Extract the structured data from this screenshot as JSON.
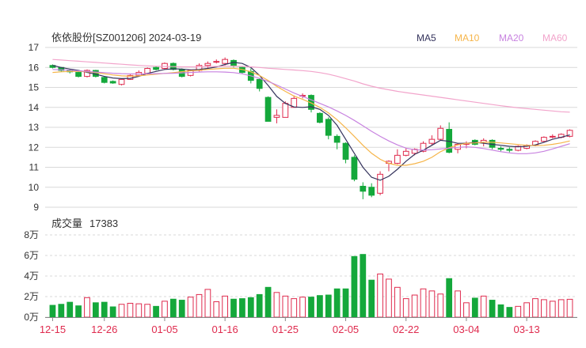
{
  "header": {
    "title": "依依股份[SZ001206] 2024-03-19"
  },
  "legend": [
    {
      "name": "MA5",
      "color": "#34335c"
    },
    {
      "name": "MA10",
      "color": "#f6b54a"
    },
    {
      "name": "MA20",
      "color": "#c883e0"
    },
    {
      "name": "MA60",
      "color": "#f2a4cb"
    }
  ],
  "volume_panel": {
    "label": "成交量",
    "value": "17383"
  },
  "colors": {
    "up": "#df2b4e",
    "down": "#14a83b",
    "grid": "#d9d9d9",
    "axis_text": "#333333",
    "date_text": "#df2b4e"
  },
  "chart_data": [
    {
      "type": "candlestick",
      "title": "依依股份[SZ001206] 2024-03-19",
      "ylim": [
        9,
        17
      ],
      "y_ticks": [
        "17",
        "16",
        "15",
        "14",
        "13",
        "12",
        "11",
        "10",
        "9"
      ],
      "x_tick_labels": [
        "12-15",
        "12-26",
        "01-05",
        "01-16",
        "01-25",
        "02-05",
        "02-22",
        "03-04",
        "03-13"
      ],
      "x_tick_index": [
        0,
        6,
        13,
        20,
        27,
        34,
        41,
        48,
        55
      ],
      "ohlc": [
        [
          16.1,
          16.15,
          15.95,
          16.0
        ],
        [
          16.0,
          16.02,
          15.78,
          15.85
        ],
        [
          15.85,
          15.9,
          15.7,
          15.78
        ],
        [
          15.75,
          15.8,
          15.5,
          15.55
        ],
        [
          15.55,
          15.9,
          15.5,
          15.85
        ],
        [
          15.85,
          15.88,
          15.5,
          15.55
        ],
        [
          15.5,
          15.55,
          15.2,
          15.25
        ],
        [
          15.3,
          15.35,
          15.18,
          15.22
        ],
        [
          15.15,
          15.45,
          15.1,
          15.4
        ],
        [
          15.4,
          15.65,
          15.38,
          15.6
        ],
        [
          15.6,
          15.85,
          15.55,
          15.75
        ],
        [
          15.7,
          16.0,
          15.65,
          15.95
        ],
        [
          16.0,
          16.05,
          15.85,
          15.9
        ],
        [
          15.95,
          16.25,
          15.9,
          16.2
        ],
        [
          16.2,
          16.25,
          15.85,
          15.9
        ],
        [
          15.9,
          15.95,
          15.5,
          15.55
        ],
        [
          15.6,
          15.9,
          15.55,
          15.85
        ],
        [
          15.85,
          16.2,
          15.8,
          16.1
        ],
        [
          16.1,
          16.3,
          15.95,
          16.2
        ],
        [
          16.3,
          16.4,
          16.2,
          16.3
        ],
        [
          16.2,
          16.5,
          16.1,
          16.4
        ],
        [
          16.35,
          16.4,
          16.0,
          16.1
        ],
        [
          16.0,
          16.05,
          15.7,
          15.75
        ],
        [
          15.8,
          15.95,
          15.2,
          15.35
        ],
        [
          15.4,
          15.45,
          14.8,
          14.95
        ],
        [
          14.5,
          14.55,
          13.3,
          13.3
        ],
        [
          13.5,
          13.9,
          13.2,
          13.6
        ],
        [
          13.5,
          14.3,
          13.5,
          14.2
        ],
        [
          14.0,
          14.6,
          14.0,
          14.45
        ],
        [
          14.6,
          14.7,
          14.45,
          14.6
        ],
        [
          14.6,
          14.65,
          13.75,
          13.9
        ],
        [
          13.7,
          13.75,
          13.2,
          13.25
        ],
        [
          13.4,
          13.5,
          12.4,
          12.6
        ],
        [
          12.55,
          12.65,
          11.9,
          12.25
        ],
        [
          12.2,
          12.25,
          11.2,
          11.4
        ],
        [
          11.5,
          11.6,
          10.3,
          10.4
        ],
        [
          10.05,
          10.25,
          9.4,
          9.8
        ],
        [
          10.0,
          10.2,
          9.5,
          9.6
        ],
        [
          9.7,
          10.8,
          9.6,
          10.65
        ],
        [
          11.2,
          11.35,
          10.8,
          11.3
        ],
        [
          11.2,
          11.9,
          11.15,
          11.6
        ],
        [
          11.6,
          11.95,
          11.55,
          11.8
        ],
        [
          11.7,
          11.95,
          11.6,
          11.9
        ],
        [
          11.8,
          12.3,
          11.75,
          12.2
        ],
        [
          12.2,
          12.6,
          12.1,
          12.4
        ],
        [
          12.4,
          13.1,
          12.35,
          12.95
        ],
        [
          12.9,
          13.25,
          11.7,
          11.75
        ],
        [
          11.9,
          12.2,
          11.7,
          12.15
        ],
        [
          12.15,
          12.3,
          11.95,
          12.2
        ],
        [
          12.35,
          12.4,
          12.1,
          12.15
        ],
        [
          12.25,
          12.45,
          12.05,
          12.35
        ],
        [
          12.35,
          12.4,
          11.9,
          12.0
        ],
        [
          11.95,
          12.05,
          11.8,
          11.9
        ],
        [
          11.9,
          12.0,
          11.75,
          11.85
        ],
        [
          11.85,
          12.1,
          11.8,
          12.05
        ],
        [
          11.95,
          12.15,
          11.9,
          12.1
        ],
        [
          12.1,
          12.35,
          12.05,
          12.3
        ],
        [
          12.3,
          12.55,
          12.25,
          12.5
        ],
        [
          12.55,
          12.65,
          12.45,
          12.55
        ],
        [
          12.5,
          12.7,
          12.45,
          12.65
        ],
        [
          12.55,
          12.9,
          12.5,
          12.85
        ]
      ],
      "ma": {
        "MA5": [
          16.1,
          16.0,
          15.92,
          15.85,
          15.75,
          15.66,
          15.55,
          15.47,
          15.44,
          15.45,
          15.55,
          15.7,
          15.8,
          15.9,
          15.93,
          15.92,
          15.88,
          15.9,
          15.95,
          16.02,
          16.15,
          16.25,
          16.2,
          16.0,
          15.6,
          15.1,
          14.55,
          14.2,
          14.02,
          14.0,
          14.03,
          13.9,
          13.6,
          13.1,
          12.4,
          11.7,
          11.0,
          10.5,
          10.35,
          10.55,
          10.9,
          11.3,
          11.65,
          11.85,
          12.1,
          12.35,
          12.3,
          12.2,
          12.2,
          12.25,
          12.2,
          12.15,
          12.1,
          12.05,
          12.02,
          12.05,
          12.12,
          12.25,
          12.4,
          12.5,
          12.62
        ],
        "MA10": [
          15.75,
          15.78,
          15.8,
          15.8,
          15.78,
          15.74,
          15.68,
          15.62,
          15.58,
          15.56,
          15.58,
          15.62,
          15.66,
          15.7,
          15.74,
          15.79,
          15.83,
          15.86,
          15.9,
          15.93,
          15.96,
          15.96,
          15.9,
          15.78,
          15.6,
          15.35,
          15.05,
          14.8,
          14.57,
          14.4,
          14.22,
          14.0,
          13.72,
          13.38,
          12.98,
          12.55,
          12.1,
          11.7,
          11.4,
          11.2,
          11.1,
          11.1,
          11.18,
          11.3,
          11.5,
          11.78,
          11.98,
          12.12,
          12.2,
          12.22,
          12.25,
          12.25,
          12.22,
          12.18,
          12.14,
          12.1,
          12.08,
          12.1,
          12.15,
          12.22,
          12.32
        ],
        "MA20": [
          15.9,
          15.88,
          15.86,
          15.83,
          15.8,
          15.77,
          15.74,
          15.71,
          15.69,
          15.68,
          15.67,
          15.68,
          15.69,
          15.7,
          15.71,
          15.73,
          15.75,
          15.77,
          15.78,
          15.78,
          15.77,
          15.74,
          15.68,
          15.58,
          15.45,
          15.3,
          15.12,
          14.92,
          14.72,
          14.55,
          14.38,
          14.2,
          14.02,
          13.82,
          13.6,
          13.35,
          13.08,
          12.8,
          12.55,
          12.32,
          12.12,
          11.96,
          11.88,
          11.86,
          11.88,
          11.92,
          11.96,
          12.0,
          12.02,
          12.0,
          11.94,
          11.86,
          11.78,
          11.72,
          11.68,
          11.68,
          11.72,
          11.8,
          11.92,
          12.05,
          12.18
        ],
        "MA60": [
          16.4,
          16.37,
          16.34,
          16.31,
          16.28,
          16.25,
          16.22,
          16.19,
          16.16,
          16.13,
          16.1,
          16.08,
          16.06,
          16.05,
          16.04,
          16.03,
          16.03,
          16.03,
          16.04,
          16.05,
          16.06,
          16.06,
          16.05,
          16.03,
          16.0,
          15.96,
          15.93,
          15.9,
          15.87,
          15.84,
          15.8,
          15.74,
          15.66,
          15.56,
          15.44,
          15.32,
          15.18,
          15.06,
          14.96,
          14.88,
          14.8,
          14.74,
          14.68,
          14.62,
          14.56,
          14.5,
          14.44,
          14.38,
          14.32,
          14.26,
          14.2,
          14.14,
          14.08,
          14.03,
          13.98,
          13.94,
          13.9,
          13.86,
          13.82,
          13.78,
          13.76
        ]
      }
    },
    {
      "type": "bar",
      "title": "成交量 17383",
      "unit": "万",
      "ylim": [
        0,
        80000
      ],
      "y_ticks": [
        "8万",
        "6万",
        "4万",
        "2万",
        "0万"
      ],
      "values": [
        11500,
        12500,
        14500,
        11000,
        19000,
        14000,
        14500,
        10000,
        12500,
        13500,
        13000,
        12500,
        10500,
        15500,
        17500,
        16500,
        19500,
        22000,
        27000,
        15000,
        20500,
        17500,
        18000,
        19000,
        22000,
        29000,
        24000,
        20500,
        18000,
        19500,
        19500,
        21000,
        21500,
        27500,
        27500,
        59000,
        61000,
        36000,
        42000,
        37000,
        29000,
        18000,
        21500,
        27500,
        25500,
        22500,
        37500,
        25500,
        14000,
        18500,
        20500,
        16500,
        12000,
        9500,
        10500,
        14000,
        18000,
        17000,
        15500,
        17000,
        17383
      ]
    }
  ]
}
